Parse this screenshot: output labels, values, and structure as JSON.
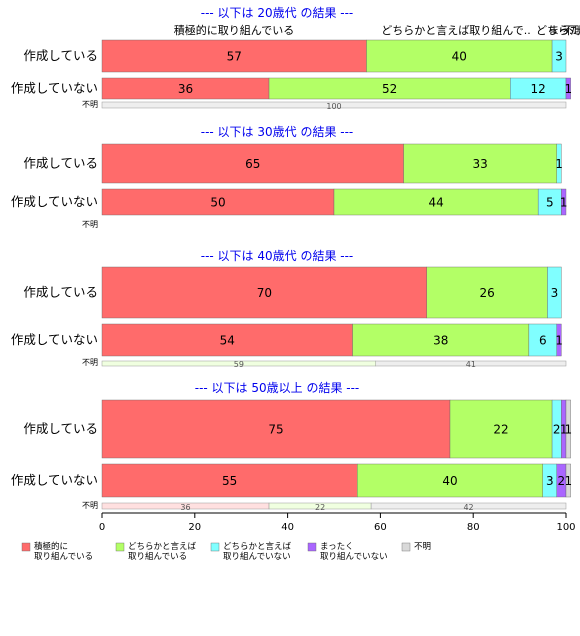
{
  "chart_data": {
    "type": "bar",
    "orientation": "horizontal-stacked-100",
    "xlim": [
      0,
      100
    ],
    "xticks": [
      0,
      20,
      40,
      60,
      80,
      100
    ],
    "colors": [
      "#ff6b6b",
      "#b3ff66",
      "#80ffff",
      "#aa66ff",
      "#d9d9d9"
    ],
    "categories_legend": [
      "積極的に\n取り組んでいる",
      "どちらかと言えば\n取り組んでいる",
      "どちらかと言えば\n取り組んでいない",
      "まったく\n取り組んでいない",
      "不明"
    ],
    "top_labels": [
      "積極的に取り組んでいる",
      "どちらかと言えば取り組んで..",
      "どちら..",
      "まった..",
      "不明"
    ],
    "unknown_label": "不明",
    "panels": [
      {
        "title": "--- 以下は 20歳代 の結果 ---",
        "rows": [
          {
            "label": "作成している",
            "values": [
              57,
              40,
              3,
              0,
              0
            ]
          },
          {
            "label": "作成していない",
            "values": [
              36,
              52,
              12,
              1,
              0
            ]
          }
        ],
        "unknown": [
          0,
          0,
          0,
          0,
          100
        ]
      },
      {
        "title": "--- 以下は 30歳代 の結果 ---",
        "rows": [
          {
            "label": "作成している",
            "values": [
              65,
              33,
              1,
              0,
              0
            ]
          },
          {
            "label": "作成していない",
            "values": [
              50,
              44,
              5,
              1,
              0
            ]
          }
        ],
        "unknown": []
      },
      {
        "title": "--- 以下は 40歳代 の結果 ---",
        "rows": [
          {
            "label": "作成している",
            "values": [
              70,
              26,
              3,
              0,
              0
            ]
          },
          {
            "label": "作成していない",
            "values": [
              54,
              38,
              6,
              1,
              0
            ]
          }
        ],
        "unknown": [
          0,
          59,
          0,
          0,
          41
        ]
      },
      {
        "title": "--- 以下は 50歳以上 の結果 ---",
        "rows": [
          {
            "label": "作成している",
            "values": [
              75,
              22,
              2,
              1,
              1
            ]
          },
          {
            "label": "作成していない",
            "values": [
              55,
              40,
              3,
              2,
              1
            ]
          }
        ],
        "unknown": [
          36,
          22,
          0,
          0,
          42
        ]
      }
    ]
  }
}
